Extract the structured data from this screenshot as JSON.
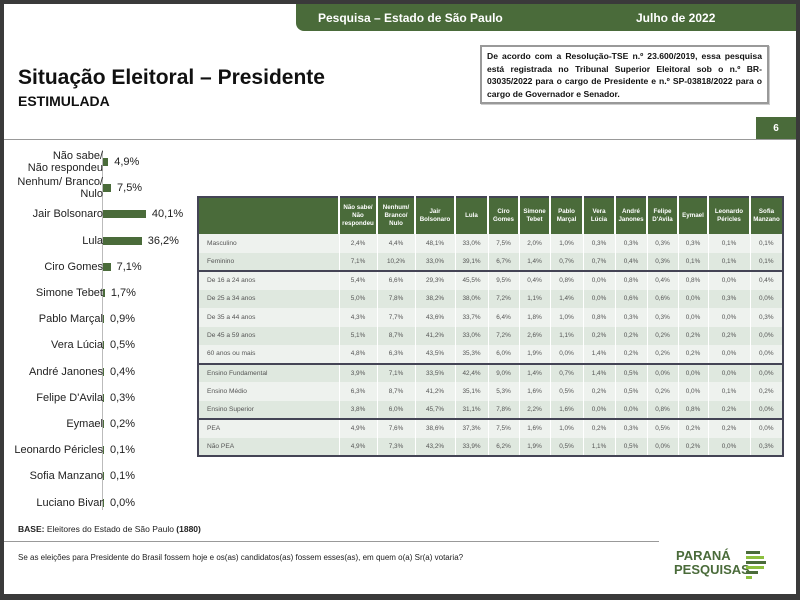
{
  "header": {
    "survey": "Pesquisa – Estado de São Paulo",
    "date": "Julho de 2022"
  },
  "title": "Situação Eleitoral – Presidente",
  "subtitle": "ESTIMULADA",
  "notice": "De acordo com a Resolução-TSE n.º 23.600/2019, essa pesquisa está registrada no Tribunal Superior Eleitoral sob o n.º BR-03035/2022 para o cargo de Presidente e n.º SP-03818/2022 para o cargo de Governador e Senador.",
  "page_number": "6",
  "base_label": "BASE:",
  "base_text": " Eleitores do Estado de São Paulo ",
  "base_n": "(1880)",
  "question": "Se as eleições para Presidente do Brasil fossem hoje e os(as) candidatos(as) fossem esses(as), em quem o(a) Sr(a) votaria?",
  "logo": {
    "line1": "PARANÁ",
    "line2": "PESQUISAS"
  },
  "accent": "#4a6b3a",
  "chart_data": {
    "type": "bar",
    "orientation": "horizontal",
    "categories": [
      "Não sabe/\nNão respondeu",
      "Nenhum/ Branco/\nNulo",
      "Jair Bolsonaro",
      "Lula",
      "Ciro Gomes",
      "Simone Tebet",
      "Pablo Marçal",
      "Vera Lúcia",
      "André Janones",
      "Felipe D'Avila",
      "Eymael",
      "Leonardo Péricles",
      "Sofia Manzano",
      "Luciano Bivar"
    ],
    "values": [
      4.9,
      7.5,
      40.1,
      36.2,
      7.1,
      1.7,
      0.9,
      0.5,
      0.4,
      0.3,
      0.2,
      0.1,
      0.1,
      0.0
    ],
    "labels": [
      "4,9%",
      "7,5%",
      "40,1%",
      "36,2%",
      "7,1%",
      "1,7%",
      "0,9%",
      "0,5%",
      "0,4%",
      "0,3%",
      "0,2%",
      "0,1%",
      "0,1%",
      "0,0%"
    ],
    "unit": "%"
  },
  "table": {
    "columns": [
      "Não sabe/ Não respondeu",
      "Nenhum/ Branco/ Nulo",
      "Jair Bolsonaro",
      "Lula",
      "Ciro Gomes",
      "Simone Tebet",
      "Pablo Marçal",
      "Vera Lúcia",
      "André Janones",
      "Felipe D'Avila",
      "Eymael",
      "Leonardo Péricles",
      "Sofia Manzano"
    ],
    "rows": [
      {
        "label": "Masculino",
        "values": [
          "2,4%",
          "4,4%",
          "48,1%",
          "33,0%",
          "7,5%",
          "2,0%",
          "1,0%",
          "0,3%",
          "0,3%",
          "0,3%",
          "0,3%",
          "0,1%",
          "0,1%"
        ]
      },
      {
        "label": "Feminino",
        "values": [
          "7,1%",
          "10,2%",
          "33,0%",
          "39,1%",
          "6,7%",
          "1,4%",
          "0,7%",
          "0,7%",
          "0,4%",
          "0,3%",
          "0,1%",
          "0,1%",
          "0,1%"
        ]
      },
      {
        "label": "De 16 a 24 anos",
        "values": [
          "5,4%",
          "6,6%",
          "29,3%",
          "45,5%",
          "9,5%",
          "0,4%",
          "0,8%",
          "0,0%",
          "0,8%",
          "0,4%",
          "0,8%",
          "0,0%",
          "0,4%"
        ]
      },
      {
        "label": "De 25 a 34 anos",
        "values": [
          "5,0%",
          "7,8%",
          "38,2%",
          "38,0%",
          "7,2%",
          "1,1%",
          "1,4%",
          "0,0%",
          "0,6%",
          "0,6%",
          "0,0%",
          "0,3%",
          "0,0%"
        ]
      },
      {
        "label": "De 35 a 44 anos",
        "values": [
          "4,3%",
          "7,7%",
          "43,6%",
          "33,7%",
          "6,4%",
          "1,8%",
          "1,0%",
          "0,8%",
          "0,3%",
          "0,3%",
          "0,0%",
          "0,0%",
          "0,3%"
        ]
      },
      {
        "label": "De 45 a 59 anos",
        "values": [
          "5,1%",
          "8,7%",
          "41,2%",
          "33,0%",
          "7,2%",
          "2,6%",
          "1,1%",
          "0,2%",
          "0,2%",
          "0,2%",
          "0,2%",
          "0,2%",
          "0,0%"
        ]
      },
      {
        "label": "60 anos ou mais",
        "values": [
          "4,8%",
          "6,3%",
          "43,5%",
          "35,3%",
          "6,0%",
          "1,9%",
          "0,0%",
          "1,4%",
          "0,2%",
          "0,2%",
          "0,2%",
          "0,0%",
          "0,0%"
        ]
      },
      {
        "label": "Ensino Fundamental",
        "values": [
          "3,9%",
          "7,1%",
          "33,5%",
          "42,4%",
          "9,0%",
          "1,4%",
          "0,7%",
          "1,4%",
          "0,5%",
          "0,0%",
          "0,0%",
          "0,0%",
          "0,0%"
        ]
      },
      {
        "label": "Ensino Médio",
        "values": [
          "6,3%",
          "8,7%",
          "41,2%",
          "35,1%",
          "5,3%",
          "1,6%",
          "0,5%",
          "0,2%",
          "0,5%",
          "0,2%",
          "0,0%",
          "0,1%",
          "0,2%"
        ]
      },
      {
        "label": "Ensino Superior",
        "values": [
          "3,8%",
          "6,0%",
          "45,7%",
          "31,1%",
          "7,8%",
          "2,2%",
          "1,6%",
          "0,0%",
          "0,0%",
          "0,8%",
          "0,8%",
          "0,2%",
          "0,0%"
        ]
      },
      {
        "label": "PEA",
        "values": [
          "4,9%",
          "7,6%",
          "38,6%",
          "37,3%",
          "7,5%",
          "1,6%",
          "1,0%",
          "0,2%",
          "0,3%",
          "0,5%",
          "0,2%",
          "0,2%",
          "0,0%"
        ]
      },
      {
        "label": "Não PEA",
        "values": [
          "4,9%",
          "7,3%",
          "43,2%",
          "33,9%",
          "6,2%",
          "1,9%",
          "0,5%",
          "1,1%",
          "0,5%",
          "0,0%",
          "0,2%",
          "0,0%",
          "0,3%"
        ]
      }
    ]
  }
}
